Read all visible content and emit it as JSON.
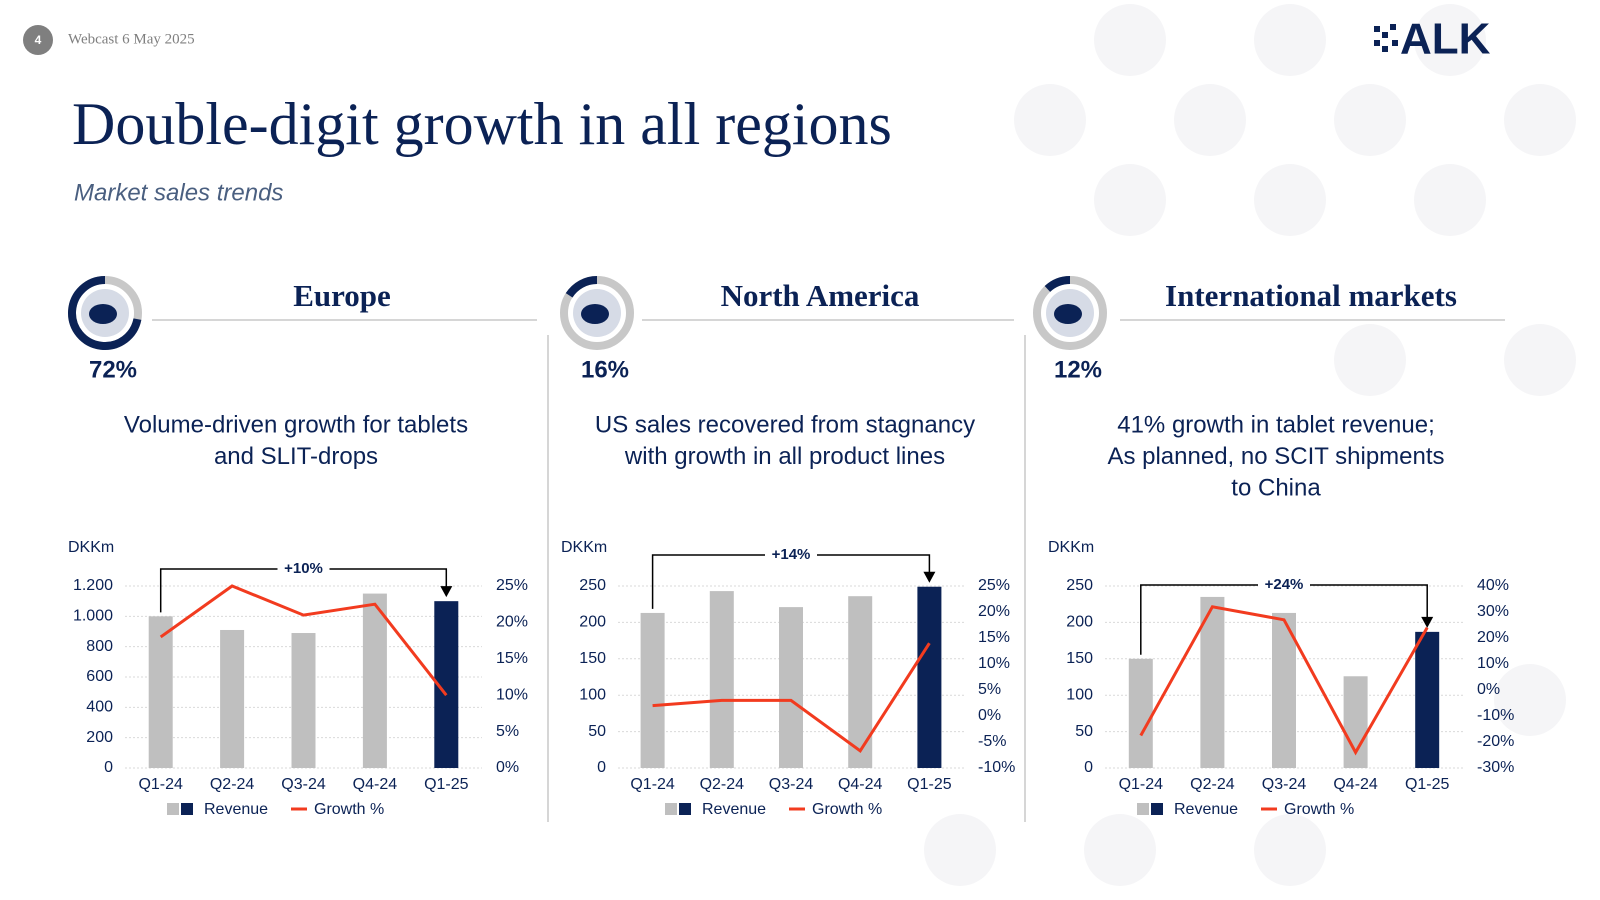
{
  "page_number": "4",
  "webcast": "Webcast 6 May 2025",
  "logo": "ALK",
  "title": "Double-digit growth in all regions",
  "subtitle": "Market sales trends",
  "panels": [
    {
      "region": "Europe",
      "share": 72,
      "share_label": "72%",
      "description": [
        "Volume-driven growth for tablets",
        "and SLIT-drops"
      ]
    },
    {
      "region": "North America",
      "share": 16,
      "share_label": "16%",
      "description": [
        "US sales recovered from stagnancy",
        "with growth in all product lines"
      ]
    },
    {
      "region": "International markets",
      "share": 12,
      "share_label": "12%",
      "description": [
        "41% growth in tablet revenue;",
        "As planned, no SCIT shipments",
        "to China"
      ]
    }
  ],
  "chart_data": [
    {
      "type": "combo",
      "ylabel": "DKKm",
      "annotation": "+10%",
      "categories": [
        "Q1-24",
        "Q2-24",
        "Q3-24",
        "Q4-24",
        "Q1-25"
      ],
      "series": [
        {
          "name": "Revenue",
          "type": "bar",
          "colors": [
            "#bfbfbf",
            "#bfbfbf",
            "#bfbfbf",
            "#bfbfbf",
            "#0b2255"
          ],
          "values": [
            1000,
            910,
            890,
            1150,
            1100
          ]
        },
        {
          "name": "Growth %",
          "type": "line",
          "axis": "y2",
          "color": "#f23b1f",
          "values": [
            18,
            25,
            21,
            22.5,
            10
          ]
        }
      ],
      "ylim": [
        0,
        1200
      ],
      "yticks": [
        0,
        200,
        400,
        600,
        800,
        {
          "value": 1000,
          "label": "1.000"
        },
        {
          "value": 1200,
          "label": "1.200"
        }
      ],
      "y2lim": [
        0,
        25
      ],
      "y2ticks": [
        {
          "value": 0,
          "label": "0%"
        },
        {
          "value": 5,
          "label": "5%"
        },
        {
          "value": 10,
          "label": "10%"
        },
        {
          "value": 15,
          "label": "15%"
        },
        {
          "value": 20,
          "label": "20%"
        },
        {
          "value": 25,
          "label": "25%"
        }
      ],
      "grid": true
    },
    {
      "type": "combo",
      "ylabel": "DKKm",
      "annotation": "+14%",
      "categories": [
        "Q1-24",
        "Q2-24",
        "Q3-24",
        "Q4-24",
        "Q1-25"
      ],
      "series": [
        {
          "name": "Revenue",
          "type": "bar",
          "colors": [
            "#bfbfbf",
            "#bfbfbf",
            "#bfbfbf",
            "#bfbfbf",
            "#0b2255"
          ],
          "values": [
            213,
            243,
            221,
            236,
            249
          ]
        },
        {
          "name": "Growth %",
          "type": "line",
          "axis": "y2",
          "color": "#f23b1f",
          "values": [
            2,
            3,
            3,
            -6.7,
            14
          ]
        }
      ],
      "ylim": [
        0,
        250
      ],
      "yticks": [
        0,
        50,
        100,
        150,
        200,
        250
      ],
      "y2lim": [
        -10,
        25
      ],
      "y2ticks": [
        {
          "value": -10,
          "label": "-10%"
        },
        {
          "value": -5,
          "label": "-5%"
        },
        {
          "value": 0,
          "label": "0%"
        },
        {
          "value": 5,
          "label": "5%"
        },
        {
          "value": 10,
          "label": "10%"
        },
        {
          "value": 15,
          "label": "15%"
        },
        {
          "value": 20,
          "label": "20%"
        },
        {
          "value": 25,
          "label": "25%"
        }
      ],
      "grid": true
    },
    {
      "type": "combo",
      "ylabel": "DKKm",
      "annotation": "+24%",
      "categories": [
        "Q1-24",
        "Q2-24",
        "Q3-24",
        "Q4-24",
        "Q1-25"
      ],
      "series": [
        {
          "name": "Revenue",
          "type": "bar",
          "colors": [
            "#bfbfbf",
            "#bfbfbf",
            "#bfbfbf",
            "#bfbfbf",
            "#0b2255"
          ],
          "values": [
            150,
            235,
            213,
            126,
            187
          ]
        },
        {
          "name": "Growth %",
          "type": "line",
          "axis": "y2",
          "color": "#f23b1f",
          "values": [
            -17.5,
            32,
            27,
            -24,
            24
          ]
        }
      ],
      "ylim": [
        0,
        250
      ],
      "yticks": [
        0,
        50,
        100,
        150,
        200,
        250
      ],
      "y2lim": [
        -30,
        40
      ],
      "y2ticks": [
        {
          "value": -30,
          "label": "-30%"
        },
        {
          "value": -20,
          "label": "-20%"
        },
        {
          "value": -10,
          "label": "-10%"
        },
        {
          "value": 0,
          "label": "0%"
        },
        {
          "value": 10,
          "label": "10%"
        },
        {
          "value": 20,
          "label": "20%"
        },
        {
          "value": 30,
          "label": "30%"
        },
        {
          "value": 40,
          "label": "40%"
        }
      ],
      "grid": true
    }
  ]
}
